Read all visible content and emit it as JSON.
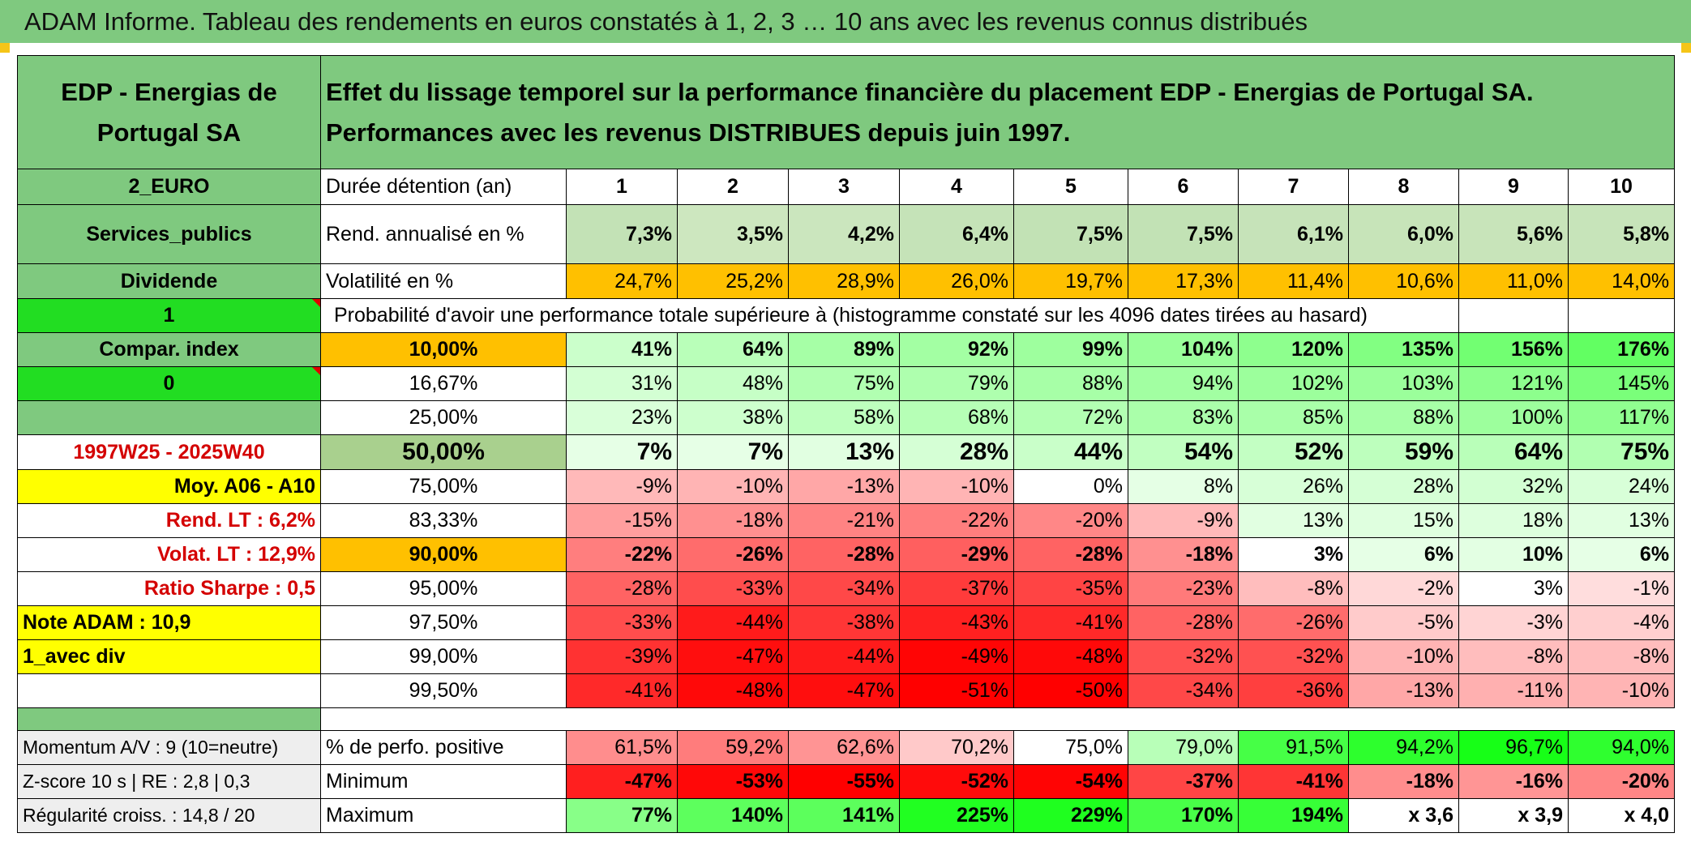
{
  "title": "ADAM Informe. Tableau des rendements en euros constatés à 1, 2, 3 … 10 ans avec les revenus connus distribués",
  "header": {
    "left": "EDP - Energias de Portugal SA",
    "right": "Effet du lissage temporel sur la performance financière du placement EDP - Energias de Portugal SA. Performances avec les revenus DISTRIBUES depuis juin 1997."
  },
  "left_col": {
    "code": "2_EURO",
    "sector": "Services_publics",
    "dividend": "Dividende",
    "one": "1",
    "compar_index": "Compar. index",
    "zero": "0",
    "period": "1997W25 - 2025W40",
    "moy": "Moy. A06 - A10",
    "rend_lt": "Rend. LT :   6,2%",
    "volat_lt": "Volat. LT :   12,9%",
    "sharpe": "Ratio Sharpe :   0,5",
    "note": "Note ADAM : 10,9",
    "avec_div": "1_avec div",
    "momentum": "Momentum A/V : 9 (10=neutre)",
    "zscore": "Z-score 10 s | RE : 2,8 | 0,3",
    "regularite": "Régularité croiss. : 14,8 / 20"
  },
  "rows": {
    "duration_label": "Durée détention (an)",
    "years": [
      "1",
      "2",
      "3",
      "4",
      "5",
      "6",
      "7",
      "8",
      "9",
      "10"
    ],
    "rend_label": "Rend. annualisé en %",
    "rend": [
      "7,3%",
      "3,5%",
      "4,2%",
      "6,4%",
      "7,5%",
      "7,5%",
      "6,1%",
      "6,0%",
      "5,6%",
      "5,8%"
    ],
    "vol_label": "Volatilité en %",
    "vol": [
      "24,7%",
      "25,2%",
      "28,9%",
      "26,0%",
      "19,7%",
      "17,3%",
      "11,4%",
      "10,6%",
      "11,0%",
      "14,0%"
    ],
    "proba_label": "Probabilité d'avoir une performance totale supérieure à (histogramme constaté sur les 4096 dates tirées au hasard)",
    "percentiles": [
      {
        "p": "10,00%",
        "vals": [
          "41%",
          "64%",
          "89%",
          "92%",
          "99%",
          "104%",
          "120%",
          "135%",
          "156%",
          "176%"
        ]
      },
      {
        "p": "16,67%",
        "vals": [
          "31%",
          "48%",
          "75%",
          "79%",
          "88%",
          "94%",
          "102%",
          "103%",
          "121%",
          "145%"
        ]
      },
      {
        "p": "25,00%",
        "vals": [
          "23%",
          "38%",
          "58%",
          "68%",
          "72%",
          "83%",
          "85%",
          "88%",
          "100%",
          "117%"
        ]
      },
      {
        "p": "50,00%",
        "vals": [
          "7%",
          "7%",
          "13%",
          "28%",
          "44%",
          "54%",
          "52%",
          "59%",
          "64%",
          "75%"
        ]
      },
      {
        "p": "75,00%",
        "vals": [
          "-9%",
          "-10%",
          "-13%",
          "-10%",
          "0%",
          "8%",
          "26%",
          "28%",
          "32%",
          "24%"
        ]
      },
      {
        "p": "83,33%",
        "vals": [
          "-15%",
          "-18%",
          "-21%",
          "-22%",
          "-20%",
          "-9%",
          "13%",
          "15%",
          "18%",
          "13%"
        ]
      },
      {
        "p": "90,00%",
        "vals": [
          "-22%",
          "-26%",
          "-28%",
          "-29%",
          "-28%",
          "-18%",
          "3%",
          "6%",
          "10%",
          "6%"
        ]
      },
      {
        "p": "95,00%",
        "vals": [
          "-28%",
          "-33%",
          "-34%",
          "-37%",
          "-35%",
          "-23%",
          "-8%",
          "-2%",
          "3%",
          "-1%"
        ]
      },
      {
        "p": "97,50%",
        "vals": [
          "-33%",
          "-44%",
          "-38%",
          "-43%",
          "-41%",
          "-28%",
          "-26%",
          "-5%",
          "-3%",
          "-4%"
        ]
      },
      {
        "p": "99,00%",
        "vals": [
          "-39%",
          "-47%",
          "-44%",
          "-49%",
          "-48%",
          "-32%",
          "-32%",
          "-10%",
          "-8%",
          "-8%"
        ]
      },
      {
        "p": "99,50%",
        "vals": [
          "-41%",
          "-48%",
          "-47%",
          "-51%",
          "-50%",
          "-34%",
          "-36%",
          "-13%",
          "-11%",
          "-10%"
        ]
      }
    ],
    "pos_label": "% de perfo. positive",
    "pos": [
      "61,5%",
      "59,2%",
      "62,6%",
      "70,2%",
      "75,0%",
      "79,0%",
      "91,5%",
      "94,2%",
      "96,7%",
      "94,0%"
    ],
    "min_label": "Minimum",
    "min": [
      "-47%",
      "-53%",
      "-55%",
      "-52%",
      "-54%",
      "-37%",
      "-41%",
      "-18%",
      "-16%",
      "-20%"
    ],
    "max_label": "Maximum",
    "max": [
      "77%",
      "140%",
      "141%",
      "225%",
      "229%",
      "170%",
      "194%",
      "x 3,6",
      "x 3,9",
      "x 4,0"
    ]
  },
  "colors": {
    "header_green": "#7fc97f",
    "lime": "#22dd22",
    "yellow": "#ffff00",
    "orange": "#ffc000",
    "label_red": "#d40000"
  }
}
